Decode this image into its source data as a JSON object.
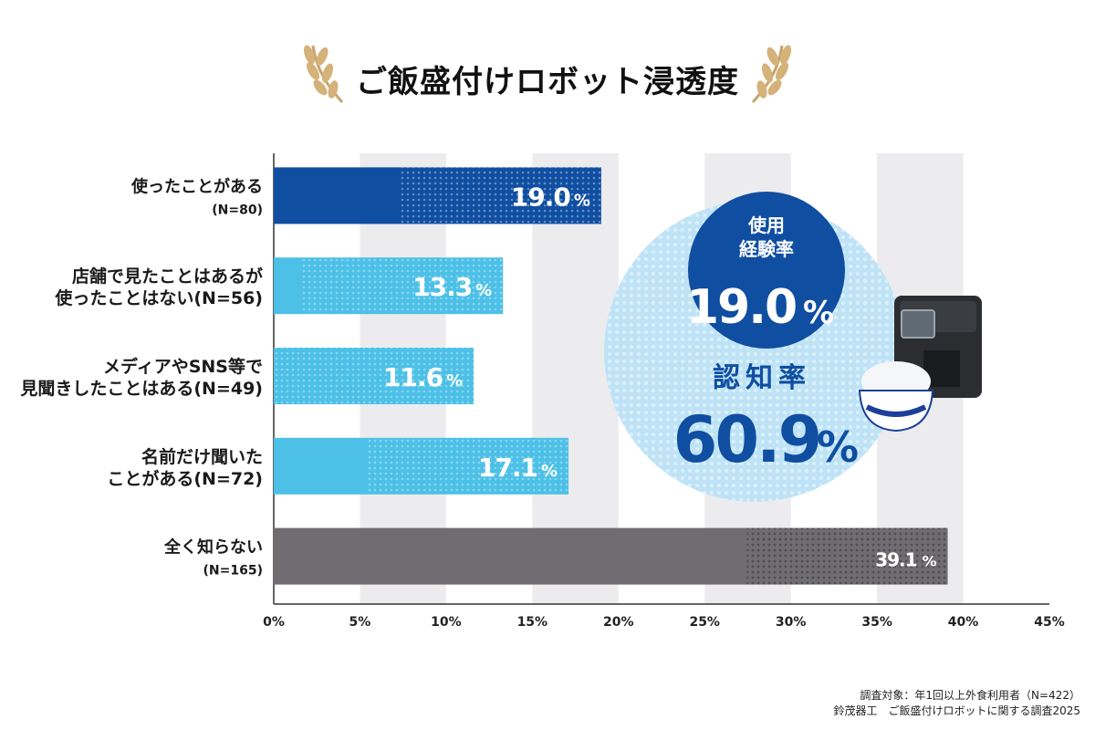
{
  "title": "ご飯盛付けロボット浸透度",
  "chart_data": {
    "type": "bar",
    "orientation": "horizontal",
    "categories": [
      [
        "使ったことがある",
        "(N=80)"
      ],
      [
        "店舗で見たことはあるが",
        "使ったことはない(N=56)"
      ],
      [
        "メディアやSNS等で",
        "見聞きしたことはある(N=49)"
      ],
      [
        "名前だけ聞いた",
        "ことがある(N=72)"
      ],
      [
        "全く知らない",
        "(N=165)"
      ]
    ],
    "values": [
      19.0,
      13.3,
      11.6,
      17.1,
      39.1
    ],
    "value_labels": [
      [
        "19.0",
        "%"
      ],
      [
        "13.3",
        "%"
      ],
      [
        "11.6",
        "%"
      ],
      [
        "17.1",
        "%"
      ],
      [
        "39.1",
        "%"
      ]
    ],
    "bar_colors": [
      "#0f4ea1",
      "#4cc0e6",
      "#4cc0e6",
      "#4cc0e6",
      "#6f6d72"
    ],
    "xlim": [
      0,
      45
    ],
    "xticks": [
      "0%",
      "5%",
      "10%",
      "15%",
      "20%",
      "25%",
      "30%",
      "35%",
      "40%",
      "45%"
    ],
    "grid": "alternating vertical bands"
  },
  "callout": {
    "usage_label_line1": "使用",
    "usage_label_line2": "経験率",
    "usage_value": "19.0",
    "usage_unit": "%",
    "awareness_label": "認知率",
    "awareness_value": "60.9",
    "awareness_unit": "%",
    "circle_color": "#bfe3f6",
    "inner_circle_color": "#0f4ea1",
    "text_color": "#0f4ea1"
  },
  "footer": {
    "line1": "調査対象：年1回以上外食利用者（N=422）",
    "line2": "鈴茂器工　ご飯盛付けロボットに関する調査2025"
  }
}
